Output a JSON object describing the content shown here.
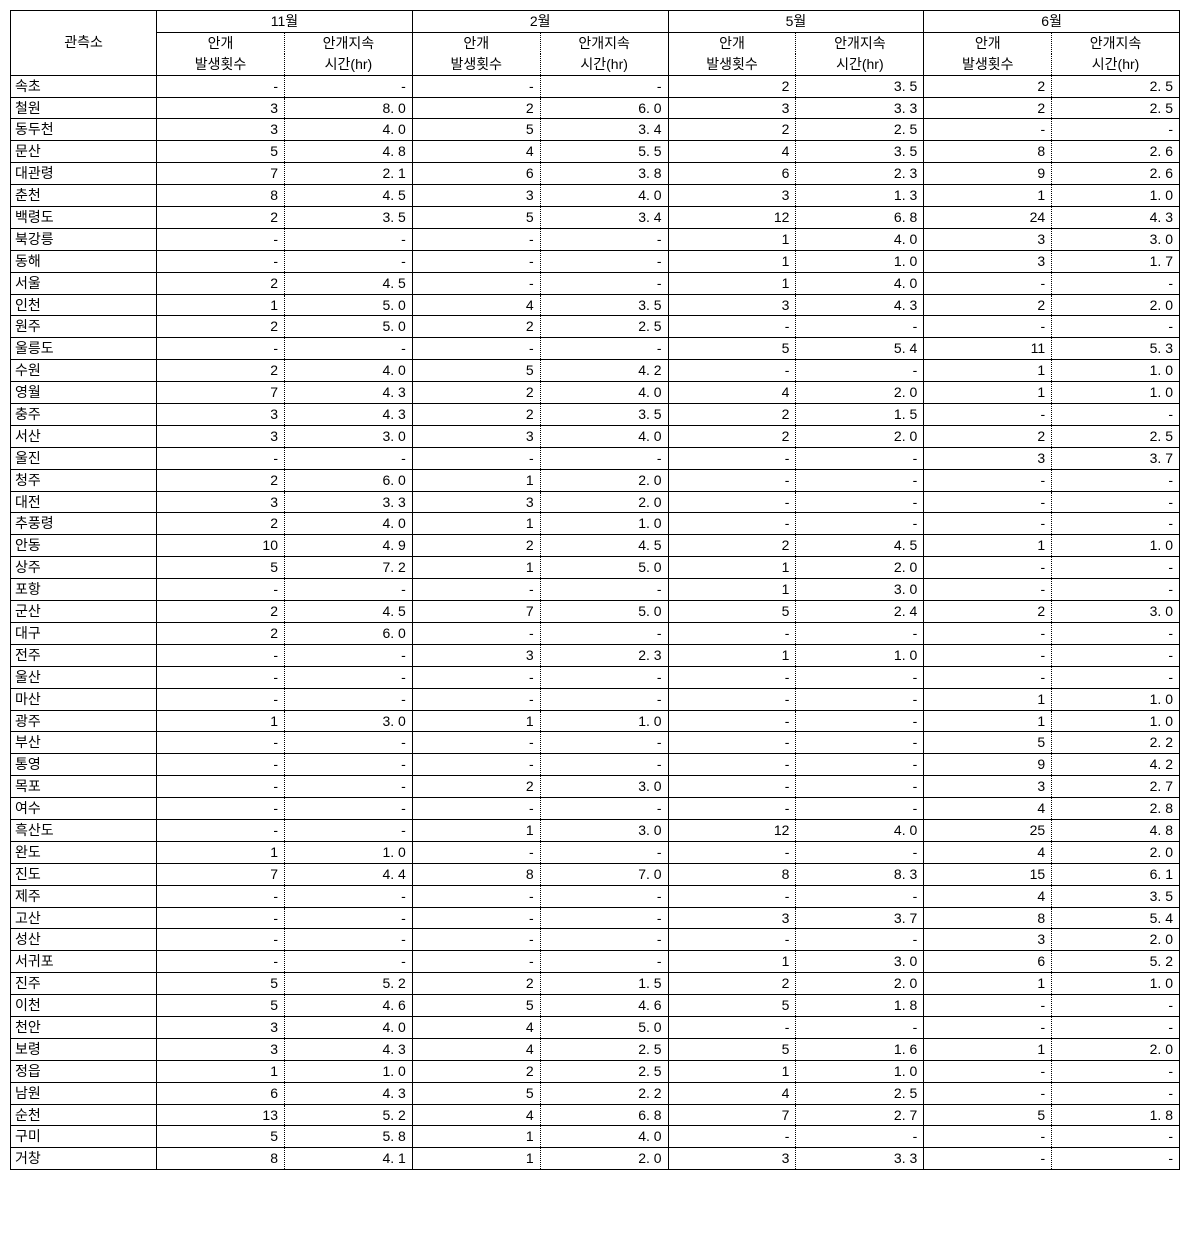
{
  "header": {
    "station_label": "관측소",
    "months": [
      "11월",
      "2월",
      "5월",
      "6월"
    ],
    "sub1": "안개",
    "sub1_line2": "발생횟수",
    "sub2": "안개지속",
    "sub2_line2": "시간(hr)"
  },
  "stations": [
    {
      "name": "속초",
      "vals": [
        "-",
        "-",
        "-",
        "-",
        "2",
        "3. 5",
        "2",
        "2. 5"
      ]
    },
    {
      "name": "철원",
      "vals": [
        "3",
        "8. 0",
        "2",
        "6. 0",
        "3",
        "3. 3",
        "2",
        "2. 5"
      ]
    },
    {
      "name": "동두천",
      "vals": [
        "3",
        "4. 0",
        "5",
        "3. 4",
        "2",
        "2. 5",
        "-",
        "-"
      ]
    },
    {
      "name": "문산",
      "vals": [
        "5",
        "4. 8",
        "4",
        "5. 5",
        "4",
        "3. 5",
        "8",
        "2. 6"
      ]
    },
    {
      "name": "대관령",
      "vals": [
        "7",
        "2. 1",
        "6",
        "3. 8",
        "6",
        "2. 3",
        "9",
        "2. 6"
      ]
    },
    {
      "name": "춘천",
      "vals": [
        "8",
        "4. 5",
        "3",
        "4. 0",
        "3",
        "1. 3",
        "1",
        "1. 0"
      ]
    },
    {
      "name": "백령도",
      "vals": [
        "2",
        "3. 5",
        "5",
        "3. 4",
        "12",
        "6. 8",
        "24",
        "4. 3"
      ]
    },
    {
      "name": "북강릉",
      "vals": [
        "-",
        "-",
        "-",
        "-",
        "1",
        "4. 0",
        "3",
        "3. 0"
      ]
    },
    {
      "name": "동해",
      "vals": [
        "-",
        "-",
        "-",
        "-",
        "1",
        "1. 0",
        "3",
        "1. 7"
      ]
    },
    {
      "name": "서울",
      "vals": [
        "2",
        "4. 5",
        "-",
        "-",
        "1",
        "4. 0",
        "-",
        "-"
      ]
    },
    {
      "name": "인천",
      "vals": [
        "1",
        "5. 0",
        "4",
        "3. 5",
        "3",
        "4. 3",
        "2",
        "2. 0"
      ]
    },
    {
      "name": "원주",
      "vals": [
        "2",
        "5. 0",
        "2",
        "2. 5",
        "-",
        "-",
        "-",
        "-"
      ]
    },
    {
      "name": "울릉도",
      "vals": [
        "-",
        "-",
        "-",
        "-",
        "5",
        "5. 4",
        "11",
        "5. 3"
      ]
    },
    {
      "name": "수원",
      "vals": [
        "2",
        "4. 0",
        "5",
        "4. 2",
        "-",
        "-",
        "1",
        "1. 0"
      ]
    },
    {
      "name": "영월",
      "vals": [
        "7",
        "4. 3",
        "2",
        "4. 0",
        "4",
        "2. 0",
        "1",
        "1. 0"
      ]
    },
    {
      "name": "충주",
      "vals": [
        "3",
        "4. 3",
        "2",
        "3. 5",
        "2",
        "1. 5",
        "-",
        "-"
      ]
    },
    {
      "name": "서산",
      "vals": [
        "3",
        "3. 0",
        "3",
        "4. 0",
        "2",
        "2. 0",
        "2",
        "2. 5"
      ]
    },
    {
      "name": "울진",
      "vals": [
        "-",
        "-",
        "-",
        "-",
        "-",
        "-",
        "3",
        "3. 7"
      ]
    },
    {
      "name": "청주",
      "vals": [
        "2",
        "6. 0",
        "1",
        "2. 0",
        "-",
        "-",
        "-",
        "-"
      ]
    },
    {
      "name": "대전",
      "vals": [
        "3",
        "3. 3",
        "3",
        "2. 0",
        "-",
        "-",
        "-",
        "-"
      ]
    },
    {
      "name": "추풍령",
      "vals": [
        "2",
        "4. 0",
        "1",
        "1. 0",
        "-",
        "-",
        "-",
        "-"
      ]
    },
    {
      "name": "안동",
      "vals": [
        "10",
        "4. 9",
        "2",
        "4. 5",
        "2",
        "4. 5",
        "1",
        "1. 0"
      ]
    },
    {
      "name": "상주",
      "vals": [
        "5",
        "7. 2",
        "1",
        "5. 0",
        "1",
        "2. 0",
        "-",
        "-"
      ]
    },
    {
      "name": "포항",
      "vals": [
        "-",
        "-",
        "-",
        "-",
        "1",
        "3. 0",
        "-",
        "-"
      ]
    },
    {
      "name": "군산",
      "vals": [
        "2",
        "4. 5",
        "7",
        "5. 0",
        "5",
        "2. 4",
        "2",
        "3. 0"
      ]
    },
    {
      "name": "대구",
      "vals": [
        "2",
        "6. 0",
        "-",
        "-",
        "-",
        "-",
        "-",
        "-"
      ]
    },
    {
      "name": "전주",
      "vals": [
        "-",
        "-",
        "3",
        "2. 3",
        "1",
        "1. 0",
        "-",
        "-"
      ]
    },
    {
      "name": "울산",
      "vals": [
        "-",
        "-",
        "-",
        "-",
        "-",
        "-",
        "-",
        "-"
      ]
    },
    {
      "name": "마산",
      "vals": [
        "-",
        "-",
        "-",
        "-",
        "-",
        "-",
        "1",
        "1. 0"
      ]
    },
    {
      "name": "광주",
      "vals": [
        "1",
        "3. 0",
        "1",
        "1. 0",
        "-",
        "-",
        "1",
        "1. 0"
      ]
    },
    {
      "name": "부산",
      "vals": [
        "-",
        "-",
        "-",
        "-",
        "-",
        "-",
        "5",
        "2. 2"
      ]
    },
    {
      "name": "통영",
      "vals": [
        "-",
        "-",
        "-",
        "-",
        "-",
        "-",
        "9",
        "4. 2"
      ]
    },
    {
      "name": "목포",
      "vals": [
        "-",
        "-",
        "2",
        "3. 0",
        "-",
        "-",
        "3",
        "2. 7"
      ]
    },
    {
      "name": "여수",
      "vals": [
        "-",
        "-",
        "-",
        "-",
        "-",
        "-",
        "4",
        "2. 8"
      ]
    },
    {
      "name": "흑산도",
      "vals": [
        "-",
        "-",
        "1",
        "3. 0",
        "12",
        "4. 0",
        "25",
        "4. 8"
      ]
    },
    {
      "name": "완도",
      "vals": [
        "1",
        "1. 0",
        "-",
        "-",
        "-",
        "-",
        "4",
        "2. 0"
      ]
    },
    {
      "name": "진도",
      "vals": [
        "7",
        "4. 4",
        "8",
        "7. 0",
        "8",
        "8. 3",
        "15",
        "6. 1"
      ]
    },
    {
      "name": "제주",
      "vals": [
        "-",
        "-",
        "-",
        "-",
        "-",
        "-",
        "4",
        "3. 5"
      ]
    },
    {
      "name": "고산",
      "vals": [
        "-",
        "-",
        "-",
        "-",
        "3",
        "3. 7",
        "8",
        "5. 4"
      ]
    },
    {
      "name": "성산",
      "vals": [
        "-",
        "-",
        "-",
        "-",
        "-",
        "-",
        "3",
        "2. 0"
      ]
    },
    {
      "name": "서귀포",
      "vals": [
        "-",
        "-",
        "-",
        "-",
        "1",
        "3. 0",
        "6",
        "5. 2"
      ]
    },
    {
      "name": "진주",
      "vals": [
        "5",
        "5. 2",
        "2",
        "1. 5",
        "2",
        "2. 0",
        "1",
        "1. 0"
      ]
    },
    {
      "name": "이천",
      "vals": [
        "5",
        "4. 6",
        "5",
        "4. 6",
        "5",
        "1. 8",
        "-",
        "-"
      ]
    },
    {
      "name": "천안",
      "vals": [
        "3",
        "4. 0",
        "4",
        "5. 0",
        "-",
        "-",
        "-",
        "-"
      ]
    },
    {
      "name": "보령",
      "vals": [
        "3",
        "4. 3",
        "4",
        "2. 5",
        "5",
        "1. 6",
        "1",
        "2. 0"
      ]
    },
    {
      "name": "정읍",
      "vals": [
        "1",
        "1. 0",
        "2",
        "2. 5",
        "1",
        "1. 0",
        "-",
        "-"
      ]
    },
    {
      "name": "남원",
      "vals": [
        "6",
        "4. 3",
        "5",
        "2. 2",
        "4",
        "2. 5",
        "-",
        "-"
      ]
    },
    {
      "name": "순천",
      "vals": [
        "13",
        "5. 2",
        "4",
        "6. 8",
        "7",
        "2. 7",
        "5",
        "1. 8"
      ]
    },
    {
      "name": "구미",
      "vals": [
        "5",
        "5. 8",
        "1",
        "4. 0",
        "-",
        "-",
        "-",
        "-"
      ]
    },
    {
      "name": "거창",
      "vals": [
        "8",
        "4. 1",
        "1",
        "2. 0",
        "3",
        "3. 3",
        "-",
        "-"
      ]
    }
  ]
}
